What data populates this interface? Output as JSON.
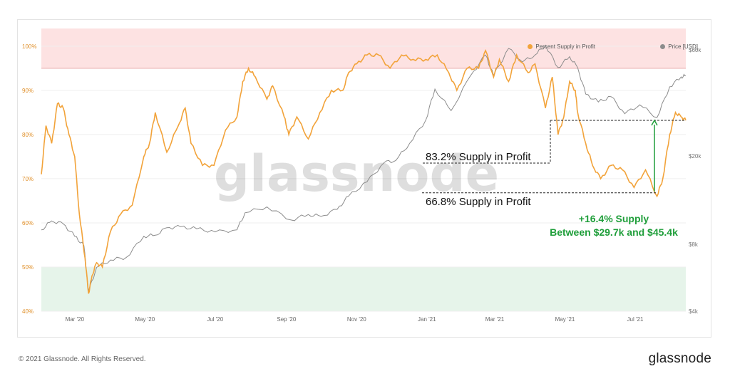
{
  "brand": {
    "watermark": "glassnode",
    "footer_copyright": "© 2021 Glassnode. All Rights Reserved.",
    "footer_logo": "glassnode"
  },
  "legend": {
    "series1": "Percent Supply in Profit",
    "series2": "Price [USD]"
  },
  "annotations": {
    "upper_label": "83.2% Supply in Profit",
    "lower_label": "66.8% Supply in Profit",
    "delta_line1": "+16.4% Supply",
    "delta_line2": "Between $29.7k and $45.4k"
  },
  "colors": {
    "profit": "#f2a33a",
    "price": "#8c8c8c",
    "upper_band": "#fde2e2",
    "upper_band_line": "#e9a8a8",
    "lower_band": "#e6f4ea",
    "lower_band_line": "#a9d5b5",
    "annotation_green": "#1f9e3a",
    "left_axis_text": "#e0902a",
    "right_axis_text": "#777777"
  },
  "chart_data": {
    "type": "line",
    "x_axis": {
      "range": [
        "2020-02-01",
        "2021-08-14"
      ],
      "ticks": [
        "Mar '20",
        "May '20",
        "Jul '20",
        "Sep '20",
        "Nov '20",
        "Jan '21",
        "Mar '21",
        "May '21",
        "Jul '21"
      ]
    },
    "y_left": {
      "label": "",
      "range": [
        40,
        104
      ],
      "ticks": [
        "40%",
        "50%",
        "60%",
        "70%",
        "80%",
        "90%",
        "100%"
      ],
      "tick_values": [
        40,
        50,
        60,
        70,
        80,
        90,
        100
      ]
    },
    "y_right": {
      "label": "",
      "scale": "log",
      "range": [
        4000,
        75000
      ],
      "ticks": [
        "$4k",
        "$8k",
        "$20k",
        "$60k"
      ],
      "tick_values": [
        4000,
        8000,
        20000,
        60000
      ]
    },
    "bands": [
      {
        "name": "upper",
        "from": 95,
        "to": 104
      },
      {
        "name": "lower",
        "from": 40,
        "to": 50
      }
    ],
    "annotation_levels": {
      "upper": 83.2,
      "lower": 66.8
    },
    "series": [
      {
        "name": "Percent Supply in Profit",
        "axis": "left",
        "x": [
          "2020-02-01",
          "2020-02-05",
          "2020-02-10",
          "2020-02-15",
          "2020-02-20",
          "2020-02-25",
          "2020-03-01",
          "2020-03-05",
          "2020-03-10",
          "2020-03-13",
          "2020-03-16",
          "2020-03-20",
          "2020-03-25",
          "2020-04-01",
          "2020-04-10",
          "2020-04-20",
          "2020-04-30",
          "2020-05-05",
          "2020-05-10",
          "2020-05-20",
          "2020-05-30",
          "2020-06-05",
          "2020-06-10",
          "2020-06-20",
          "2020-06-30",
          "2020-07-10",
          "2020-07-20",
          "2020-07-25",
          "2020-07-30",
          "2020-08-05",
          "2020-08-15",
          "2020-08-20",
          "2020-08-30",
          "2020-09-03",
          "2020-09-10",
          "2020-09-20",
          "2020-09-30",
          "2020-10-10",
          "2020-10-20",
          "2020-10-25",
          "2020-11-01",
          "2020-11-10",
          "2020-11-20",
          "2020-11-30",
          "2020-12-10",
          "2020-12-20",
          "2020-12-31",
          "2021-01-10",
          "2021-01-20",
          "2021-01-27",
          "2021-02-05",
          "2021-02-15",
          "2021-02-21",
          "2021-02-28",
          "2021-03-05",
          "2021-03-13",
          "2021-03-20",
          "2021-03-30",
          "2021-04-05",
          "2021-04-14",
          "2021-04-20",
          "2021-04-25",
          "2021-04-30",
          "2021-05-05",
          "2021-05-10",
          "2021-05-12",
          "2021-05-19",
          "2021-05-25",
          "2021-06-01",
          "2021-06-10",
          "2021-06-20",
          "2021-06-30",
          "2021-07-10",
          "2021-07-20",
          "2021-07-25",
          "2021-07-31",
          "2021-08-05",
          "2021-08-10",
          "2021-08-14"
        ],
        "values": [
          71,
          82,
          78,
          87,
          86,
          80,
          75,
          62,
          52,
          44,
          48,
          51,
          50,
          58,
          62,
          64,
          75,
          78,
          85,
          76,
          82,
          86,
          78,
          73,
          73,
          81,
          84,
          92,
          95,
          93,
          88,
          91,
          84,
          80,
          84,
          79,
          85,
          90,
          90,
          94,
          96,
          98,
          98,
          95,
          98,
          97,
          97,
          98,
          94,
          90,
          95,
          95,
          99,
          93,
          97,
          92,
          98,
          94,
          96,
          86,
          93,
          80,
          84,
          92,
          90,
          85,
          78,
          73,
          70,
          73,
          72,
          68,
          72,
          66,
          70,
          80,
          85,
          84,
          83.2
        ]
      },
      {
        "name": "Price [USD]",
        "axis": "right",
        "x": [
          "2020-02-01",
          "2020-02-10",
          "2020-02-20",
          "2020-03-01",
          "2020-03-09",
          "2020-03-13",
          "2020-03-20",
          "2020-04-01",
          "2020-04-15",
          "2020-04-30",
          "2020-05-10",
          "2020-05-20",
          "2020-06-01",
          "2020-06-15",
          "2020-07-01",
          "2020-07-20",
          "2020-07-27",
          "2020-08-15",
          "2020-09-05",
          "2020-09-20",
          "2020-10-01",
          "2020-10-15",
          "2020-10-25",
          "2020-11-10",
          "2020-11-25",
          "2020-12-05",
          "2020-12-17",
          "2020-12-31",
          "2021-01-08",
          "2021-01-22",
          "2021-02-08",
          "2021-02-21",
          "2021-02-28",
          "2021-03-13",
          "2021-03-25",
          "2021-04-05",
          "2021-04-14",
          "2021-04-25",
          "2021-05-05",
          "2021-05-12",
          "2021-05-19",
          "2021-05-30",
          "2021-06-10",
          "2021-06-22",
          "2021-07-05",
          "2021-07-20",
          "2021-07-31",
          "2021-08-10",
          "2021-08-14"
        ],
        "values": [
          9300,
          10200,
          9900,
          8700,
          7900,
          4900,
          6300,
          6800,
          7000,
          8700,
          8800,
          9500,
          9600,
          9400,
          9100,
          9300,
          11100,
          11800,
          10300,
          10900,
          10700,
          11500,
          13200,
          15300,
          18700,
          19100,
          22800,
          29000,
          40000,
          32000,
          46000,
          57000,
          46000,
          61000,
          53000,
          57000,
          63000,
          50000,
          56000,
          50000,
          38000,
          35000,
          37000,
          31000,
          34000,
          29800,
          41000,
          45400,
          46000
        ]
      }
    ]
  }
}
